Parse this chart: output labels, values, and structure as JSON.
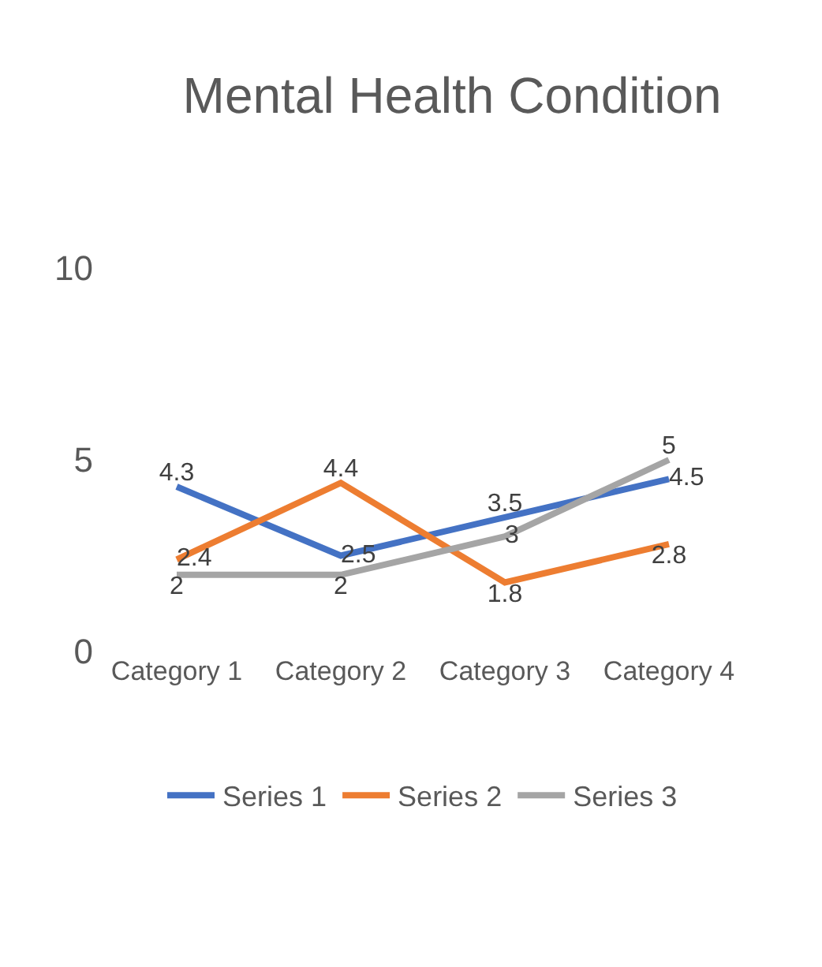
{
  "chart_data": {
    "type": "line",
    "title": "Mental Health Condition",
    "categories": [
      "Category 1",
      "Category 2",
      "Category 3",
      "Category 4"
    ],
    "series": [
      {
        "name": "Series 1",
        "color": "#4472c4",
        "values": [
          4.3,
          2.5,
          3.5,
          4.5
        ]
      },
      {
        "name": "Series 2",
        "color": "#ed7d31",
        "values": [
          2.4,
          4.4,
          1.8,
          2.8
        ]
      },
      {
        "name": "Series 3",
        "color": "#a5a5a5",
        "values": [
          2,
          2,
          3,
          5
        ]
      }
    ],
    "ylim": [
      0,
      10
    ],
    "yticks": [
      0,
      5,
      10
    ],
    "grid": false,
    "legend": "bottom",
    "data_labels": true,
    "marker": "none",
    "line_style": "solid"
  }
}
